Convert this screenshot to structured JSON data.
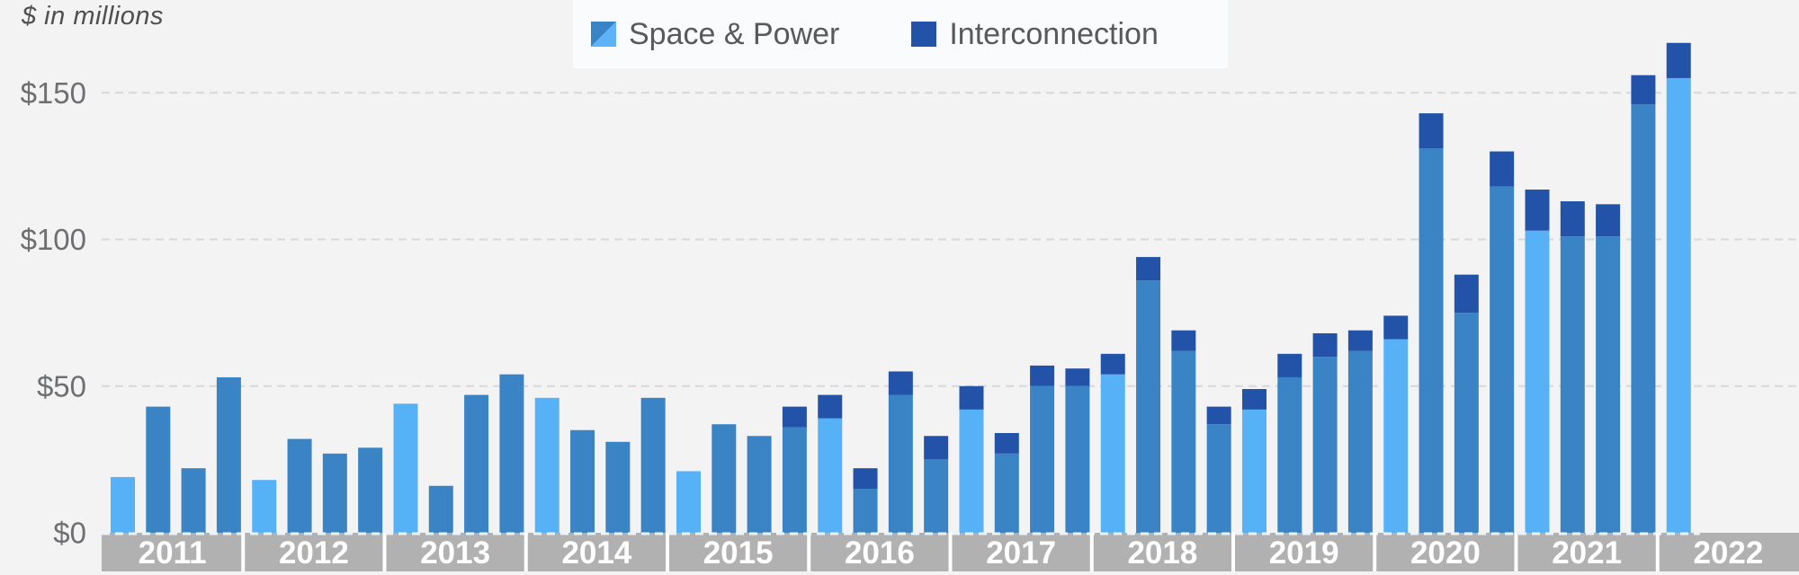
{
  "chart_data": {
    "type": "bar",
    "subtype": "stacked-quarterly",
    "unit_label": "$ in millions",
    "legend": [
      {
        "label": "Space & Power"
      },
      {
        "label": "Interconnection"
      }
    ],
    "legend_position": "top-center",
    "grid": "dashed-horizontal",
    "ylim": [
      0,
      170
    ],
    "y_ticks": [
      {
        "value": 0,
        "label": "$0"
      },
      {
        "value": 50,
        "label": "$50"
      },
      {
        "value": 100,
        "label": "$100"
      },
      {
        "value": 150,
        "label": "$150"
      }
    ],
    "years": [
      "2011",
      "2012",
      "2013",
      "2014",
      "2015",
      "2016",
      "2017",
      "2018",
      "2019",
      "2020",
      "2021",
      "2022"
    ],
    "colors": {
      "space_power_q1": "#57b1f7",
      "space_power": "#3a84c6",
      "interconnection": "#2253a8",
      "background": "#f3f3f4",
      "axis_band": "#b1b1b2",
      "gridline": "#d7d8d9",
      "tick_text": "#6e6f71",
      "year_text": "#ffffff"
    },
    "bars": [
      {
        "year": "2011",
        "quarter": "Q1",
        "space_power": 19,
        "interconnection": 0
      },
      {
        "year": "2011",
        "quarter": "Q2",
        "space_power": 43,
        "interconnection": 0
      },
      {
        "year": "2011",
        "quarter": "Q3",
        "space_power": 22,
        "interconnection": 0
      },
      {
        "year": "2011",
        "quarter": "Q4",
        "space_power": 53,
        "interconnection": 0
      },
      {
        "year": "2012",
        "quarter": "Q1",
        "space_power": 18,
        "interconnection": 0
      },
      {
        "year": "2012",
        "quarter": "Q2",
        "space_power": 32,
        "interconnection": 0
      },
      {
        "year": "2012",
        "quarter": "Q3",
        "space_power": 27,
        "interconnection": 0
      },
      {
        "year": "2012",
        "quarter": "Q4",
        "space_power": 29,
        "interconnection": 0
      },
      {
        "year": "2013",
        "quarter": "Q1",
        "space_power": 44,
        "interconnection": 0
      },
      {
        "year": "2013",
        "quarter": "Q2",
        "space_power": 16,
        "interconnection": 0
      },
      {
        "year": "2013",
        "quarter": "Q3",
        "space_power": 47,
        "interconnection": 0
      },
      {
        "year": "2013",
        "quarter": "Q4",
        "space_power": 54,
        "interconnection": 0
      },
      {
        "year": "2014",
        "quarter": "Q1",
        "space_power": 46,
        "interconnection": 0
      },
      {
        "year": "2014",
        "quarter": "Q2",
        "space_power": 35,
        "interconnection": 0
      },
      {
        "year": "2014",
        "quarter": "Q3",
        "space_power": 31,
        "interconnection": 0
      },
      {
        "year": "2014",
        "quarter": "Q4",
        "space_power": 46,
        "interconnection": 0
      },
      {
        "year": "2015",
        "quarter": "Q1",
        "space_power": 21,
        "interconnection": 0
      },
      {
        "year": "2015",
        "quarter": "Q2",
        "space_power": 37,
        "interconnection": 0
      },
      {
        "year": "2015",
        "quarter": "Q3",
        "space_power": 33,
        "interconnection": 0
      },
      {
        "year": "2015",
        "quarter": "Q4",
        "space_power": 36,
        "interconnection": 7
      },
      {
        "year": "2016",
        "quarter": "Q1",
        "space_power": 39,
        "interconnection": 8
      },
      {
        "year": "2016",
        "quarter": "Q2",
        "space_power": 15,
        "interconnection": 7
      },
      {
        "year": "2016",
        "quarter": "Q3",
        "space_power": 47,
        "interconnection": 8
      },
      {
        "year": "2016",
        "quarter": "Q4",
        "space_power": 25,
        "interconnection": 8
      },
      {
        "year": "2017",
        "quarter": "Q1",
        "space_power": 42,
        "interconnection": 8
      },
      {
        "year": "2017",
        "quarter": "Q2",
        "space_power": 27,
        "interconnection": 7
      },
      {
        "year": "2017",
        "quarter": "Q3",
        "space_power": 50,
        "interconnection": 7
      },
      {
        "year": "2017",
        "quarter": "Q4",
        "space_power": 50,
        "interconnection": 6
      },
      {
        "year": "2018",
        "quarter": "Q1",
        "space_power": 54,
        "interconnection": 7
      },
      {
        "year": "2018",
        "quarter": "Q2",
        "space_power": 86,
        "interconnection": 8
      },
      {
        "year": "2018",
        "quarter": "Q3",
        "space_power": 62,
        "interconnection": 7
      },
      {
        "year": "2018",
        "quarter": "Q4",
        "space_power": 37,
        "interconnection": 6
      },
      {
        "year": "2019",
        "quarter": "Q1",
        "space_power": 42,
        "interconnection": 7
      },
      {
        "year": "2019",
        "quarter": "Q2",
        "space_power": 53,
        "interconnection": 8
      },
      {
        "year": "2019",
        "quarter": "Q3",
        "space_power": 60,
        "interconnection": 8
      },
      {
        "year": "2019",
        "quarter": "Q4",
        "space_power": 62,
        "interconnection": 7
      },
      {
        "year": "2020",
        "quarter": "Q1",
        "space_power": 66,
        "interconnection": 8
      },
      {
        "year": "2020",
        "quarter": "Q2",
        "space_power": 131,
        "interconnection": 12
      },
      {
        "year": "2020",
        "quarter": "Q3",
        "space_power": 75,
        "interconnection": 13
      },
      {
        "year": "2020",
        "quarter": "Q4",
        "space_power": 118,
        "interconnection": 12
      },
      {
        "year": "2021",
        "quarter": "Q1",
        "space_power": 103,
        "interconnection": 14
      },
      {
        "year": "2021",
        "quarter": "Q2",
        "space_power": 101,
        "interconnection": 12
      },
      {
        "year": "2021",
        "quarter": "Q3",
        "space_power": 101,
        "interconnection": 11
      },
      {
        "year": "2021",
        "quarter": "Q4",
        "space_power": 146,
        "interconnection": 10
      },
      {
        "year": "2022",
        "quarter": "Q1",
        "space_power": 155,
        "interconnection": 12
      }
    ]
  }
}
